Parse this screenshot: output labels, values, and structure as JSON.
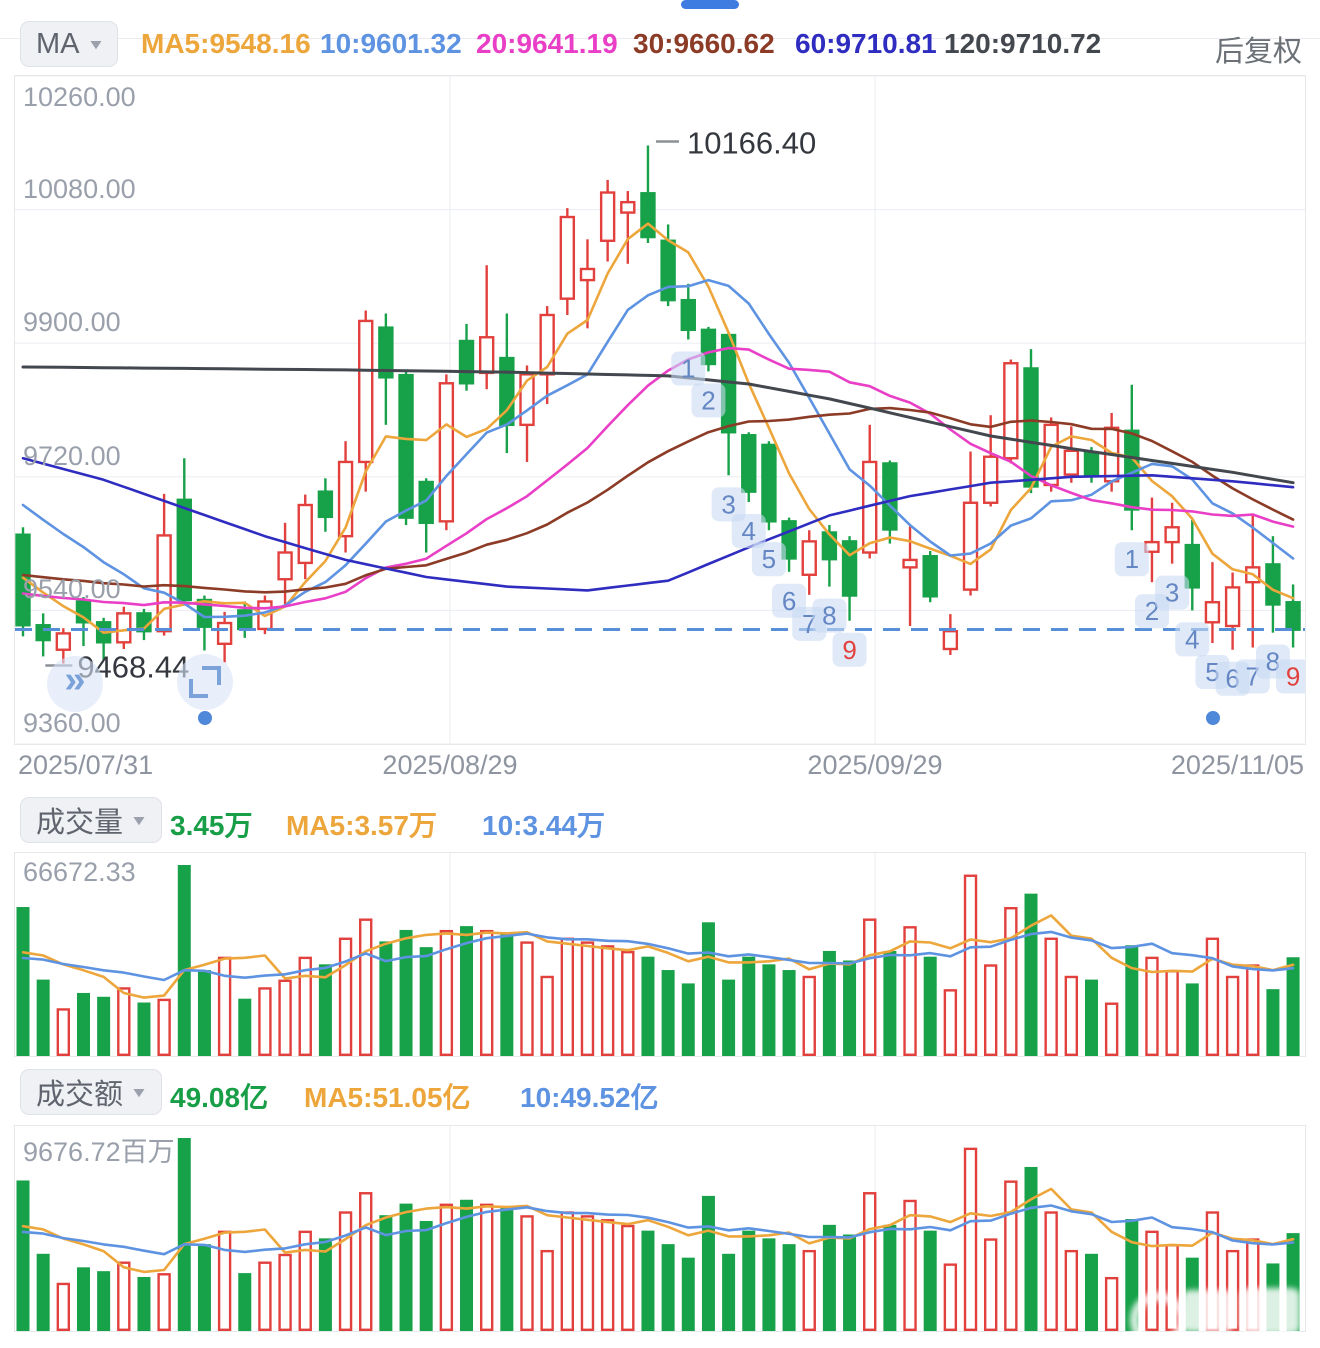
{
  "header": {
    "ma_button": "MA",
    "adjust_mode": "后复权",
    "ma_values": [
      {
        "text": "MA5:9548.16",
        "color": "#eda63b"
      },
      {
        "text": "10:9601.32",
        "color": "#5e93e2"
      },
      {
        "text": "20:9641.19",
        "color": "#e93fc7"
      },
      {
        "text": "30:9660.62",
        "color": "#8c3b26"
      },
      {
        "text": "60:9710.81",
        "color": "#2f2cc0"
      },
      {
        "text": "120:9710.72",
        "color": "#43474e"
      }
    ]
  },
  "volume_panel": {
    "button": "成交量",
    "current": "3.45万",
    "ma5": "MA5:3.57万",
    "ma10": "10:3.44万",
    "max_label": "66672.33"
  },
  "turnover_panel": {
    "button": "成交额",
    "current": "49.08亿",
    "ma5": "MA5:51.05亿",
    "ma10": "10:49.52亿",
    "max_label": "9676.72百万"
  },
  "chart_data": {
    "type": "candlestick",
    "x_dates": [
      "2025/07/31",
      "2025/08/29",
      "2025/09/29",
      "2025/11/05"
    ],
    "y_tick_values": [
      10260,
      10080,
      9900,
      9720,
      9540,
      9360
    ],
    "y_tick_labels": [
      "10260.00",
      "10080.00",
      "9900.00",
      "9720.00",
      "9540.00",
      "9360.00"
    ],
    "ylim": [
      9360,
      10260
    ],
    "grid_x_dates": [
      1,
      2
    ],
    "up_color": "#e2403d",
    "down_color": "#17a149",
    "dashed_reference_price": 9514.3,
    "dashed_line_color": "#568ed8",
    "high_annotation": {
      "label": "10166.40",
      "candle_index": 31,
      "price": 10166.4
    },
    "low_annotation": {
      "label": "9468.44",
      "candle_index": 2,
      "price": 9468.44
    },
    "candles_ochl": [
      [
        9642,
        9520,
        9652,
        9505
      ],
      [
        9520,
        9500,
        9536,
        9478
      ],
      [
        9487,
        9509,
        9516,
        9468.44
      ],
      [
        9552,
        9524,
        9558,
        9492
      ],
      [
        9524,
        9497,
        9530,
        9473
      ],
      [
        9497,
        9536,
        9545,
        9488
      ],
      [
        9536,
        9512,
        9542,
        9500
      ],
      [
        9512,
        9641,
        9697,
        9506
      ],
      [
        9689,
        9554,
        9745,
        9548
      ],
      [
        9554,
        9518,
        9560,
        9486
      ],
      [
        9495,
        9523,
        9538,
        9470
      ],
      [
        9540,
        9515,
        9552,
        9503
      ],
      [
        9515,
        9552,
        9560,
        9508
      ],
      [
        9582,
        9618,
        9658,
        9545
      ],
      [
        9604,
        9682,
        9696,
        9582
      ],
      [
        9700,
        9666,
        9718,
        9646
      ],
      [
        9640,
        9740,
        9768,
        9618
      ],
      [
        9740,
        9930,
        9944,
        9700
      ],
      [
        9921,
        9854,
        9940,
        9790
      ],
      [
        9857,
        9665,
        9862,
        9655
      ],
      [
        9713,
        9658,
        9718,
        9618
      ],
      [
        9660,
        9846,
        9858,
        9648
      ],
      [
        9903,
        9846,
        9926,
        9836
      ],
      [
        9860,
        9908,
        10005,
        9838
      ],
      [
        9880,
        9790,
        9940,
        9752
      ],
      [
        9790,
        9858,
        9870,
        9740
      ],
      [
        9858,
        9938,
        9950,
        9818
      ],
      [
        9960,
        10070,
        10082,
        9938
      ],
      [
        9985,
        10000,
        10040,
        9920
      ],
      [
        10038,
        10103,
        10120,
        10010
      ],
      [
        10076,
        10090,
        10105,
        10007
      ],
      [
        10102,
        10043,
        10166.4,
        10035
      ],
      [
        10038,
        9958,
        10060,
        9950
      ],
      [
        9958,
        9918,
        9980,
        9905
      ],
      [
        9918,
        9872,
        9922,
        9862
      ],
      [
        9911,
        9780,
        9915,
        9722
      ],
      [
        9776,
        9700,
        9780,
        9686
      ],
      [
        9763,
        9660,
        9768,
        9648
      ],
      [
        9660,
        9610,
        9665,
        9592
      ],
      [
        9588,
        9633,
        9648,
        9561
      ],
      [
        9645,
        9609,
        9655,
        9572
      ],
      [
        9633,
        9560,
        9640,
        9526
      ],
      [
        9618,
        9740,
        9790,
        9610
      ],
      [
        9738,
        9649,
        9742,
        9630
      ],
      [
        9598,
        9608,
        9653,
        9519
      ],
      [
        9613,
        9559,
        9620,
        9551
      ],
      [
        9488,
        9512,
        9535,
        9480
      ],
      [
        9568,
        9685,
        9754,
        9560
      ],
      [
        9685,
        9747,
        9803,
        9680
      ],
      [
        9745,
        9873,
        9878,
        9738
      ],
      [
        9866,
        9707,
        9892,
        9698
      ],
      [
        9709,
        9790,
        9800,
        9700
      ],
      [
        9723,
        9755,
        9788,
        9712
      ],
      [
        9752,
        9723,
        9760,
        9712
      ],
      [
        9714,
        9786,
        9806,
        9700
      ],
      [
        9782,
        9676,
        9844,
        9648
      ],
      [
        9619,
        9632,
        9692,
        9578
      ],
      [
        9632,
        9652,
        9685,
        9603
      ],
      [
        9628,
        9571,
        9662,
        9540
      ],
      [
        9524,
        9551,
        9605,
        9496
      ],
      [
        9519,
        9571,
        9591,
        9487
      ],
      [
        9578,
        9598,
        9669,
        9490
      ],
      [
        9602,
        9548,
        9640,
        9510
      ],
      [
        9551,
        9514,
        9575,
        9490
      ]
    ],
    "ma_lines": [
      {
        "name": "MA5",
        "color": "#eda63b",
        "type": "computed",
        "window": 5,
        "seed": 9600
      },
      {
        "name": "MA10",
        "color": "#5e93e2",
        "type": "computed",
        "window": 10,
        "seed": 9700
      },
      {
        "name": "MA20",
        "color": "#e93fc7",
        "type": "computed",
        "window": 20,
        "seed": 9565
      },
      {
        "name": "MA30",
        "color": "#8c3b26",
        "type": "computed",
        "window": 30,
        "seed": 9590
      },
      {
        "name": "MA60",
        "color": "#2f2cc0",
        "type": "sampled",
        "idx": [
          0,
          4,
          8,
          12,
          16,
          20,
          24,
          28,
          32,
          36,
          40,
          44,
          48,
          52,
          56,
          60,
          63
        ],
        "val": [
          9745,
          9716,
          9678,
          9640,
          9608,
          9585,
          9572,
          9567,
          9580,
          9625,
          9668,
          9694,
          9712,
          9720,
          9722,
          9714,
          9706
        ]
      },
      {
        "name": "MA120",
        "color": "#43474e",
        "type": "sampled",
        "idx": [
          0,
          8,
          16,
          24,
          32,
          36,
          40,
          44,
          48,
          52,
          56,
          60,
          63
        ],
        "val": [
          9868,
          9866,
          9864,
          9861,
          9856,
          9845,
          9825,
          9800,
          9775,
          9758,
          9742,
          9726,
          9712
        ]
      }
    ],
    "count_badges": [
      {
        "index": 33,
        "label": "1"
      },
      {
        "index": 34,
        "label": "2"
      },
      {
        "index": 35,
        "label": "3"
      },
      {
        "index": 36,
        "label": "4"
      },
      {
        "index": 37,
        "label": "5"
      },
      {
        "index": 38,
        "label": "6"
      },
      {
        "index": 39,
        "label": "7"
      },
      {
        "index": 40,
        "label": "8"
      },
      {
        "index": 41,
        "label": "9",
        "highlight": true
      },
      {
        "index": 55,
        "label": "1"
      },
      {
        "index": 56,
        "label": "2"
      },
      {
        "index": 57,
        "label": "3"
      },
      {
        "index": 58,
        "label": "4"
      },
      {
        "index": 59,
        "label": "5"
      },
      {
        "index": 60,
        "label": "6"
      },
      {
        "index": 61,
        "label": "7"
      },
      {
        "index": 62,
        "label": "8"
      },
      {
        "index": 63,
        "label": "9",
        "highlight": true
      }
    ],
    "badge_color": "#6487c4",
    "badge_highlight_color": "#e2413d",
    "badge_bg": "rgba(201,218,244,0.6)",
    "volume": {
      "max_value": 66672.33,
      "values": [
        52004,
        26669,
        16668,
        22002,
        20668,
        24002,
        18668,
        20002,
        66672.33,
        30002,
        34669,
        20002,
        24002,
        26669,
        34669,
        32003,
        41337,
        48004,
        40003,
        44004,
        38003,
        44004,
        45337,
        44004,
        42670,
        40003,
        28002,
        41337,
        40003,
        38670,
        36670,
        34669,
        30002,
        25335,
        46670,
        26669,
        34669,
        32003,
        30002,
        28002,
        36670,
        33336,
        48004,
        36670,
        45337,
        34669,
        23335,
        63338,
        32003,
        52004,
        56671,
        41337,
        28002,
        26669,
        18668,
        38670,
        34669,
        30002,
        25335,
        41337,
        28002,
        32003,
        23335,
        34470
      ],
      "ma_windows": [
        5,
        10
      ],
      "ma_colors": [
        "#eda63b",
        "#5e93e2"
      ]
    },
    "turnover": {
      "max_value": 9676.72,
      "values": [
        7548,
        3871,
        2419,
        3193,
        3000,
        3484,
        2709,
        2903,
        9676.72,
        4355,
        5032,
        2903,
        3484,
        3871,
        5032,
        4645,
        6000,
        6967,
        5806,
        6387,
        5516,
        6387,
        6580,
        6387,
        6193,
        5806,
        4064,
        6000,
        5806,
        5613,
        5322,
        5032,
        4355,
        3677,
        6774,
        3871,
        5032,
        4645,
        4355,
        4064,
        5322,
        4838,
        6967,
        5322,
        6580,
        5032,
        3387,
        9193,
        4645,
        7548,
        8225,
        6000,
        4064,
        3871,
        2709,
        5613,
        5032,
        4355,
        3677,
        6000,
        4064,
        4645,
        3387,
        4908
      ],
      "ma_windows": [
        5,
        10
      ],
      "ma_colors": [
        "#eda63b",
        "#5e93e2"
      ]
    }
  }
}
